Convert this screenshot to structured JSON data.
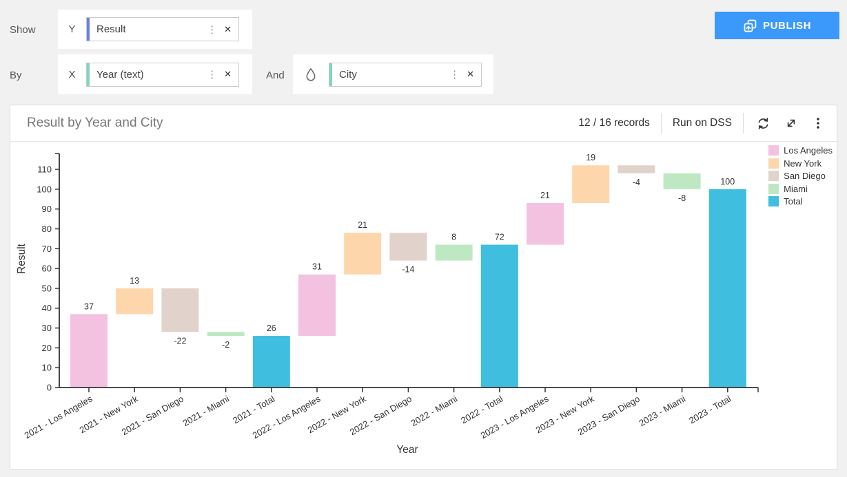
{
  "toolbar": {
    "show_label": "Show",
    "by_label": "By",
    "and_label": "And",
    "y_badge": "Y",
    "x_badge": "X",
    "y_field": {
      "value": "Result",
      "accent_color": "#687FE3"
    },
    "x_field": {
      "value": "Year (text)",
      "accent_color": "#7FD6C3"
    },
    "and_field": {
      "value": "City",
      "accent_color": "#7FD6C3"
    },
    "publish_label": "PUBLISH",
    "publish_color": "#3B99FC"
  },
  "chart_card": {
    "title": "Result by Year and City",
    "records_text": "12 / 16 records",
    "run_button": "Run on DSS"
  },
  "chart_data": {
    "type": "bar",
    "subtype": "waterfall",
    "title": "Result by Year and City",
    "xlabel": "Year",
    "ylabel": "Result",
    "ylim": [
      0,
      110
    ],
    "ytick_step": 10,
    "grid": false,
    "legend_position": "top-right",
    "categories": [
      "2021 - Los Angeles",
      "2021 - New York",
      "2021 - San Diego",
      "2021 - Miami",
      "2021 - Total",
      "2022 - Los Angeles",
      "2022 - New York",
      "2022 - San Diego",
      "2022 - Miami",
      "2022 - Total",
      "2023 - Los Angeles",
      "2023 - New York",
      "2023 - San Diego",
      "2023 - Miami",
      "2023 - Total"
    ],
    "values": [
      37,
      13,
      -22,
      -2,
      26,
      31,
      21,
      -14,
      8,
      72,
      21,
      19,
      -4,
      -8,
      100
    ],
    "is_total": [
      false,
      false,
      false,
      false,
      true,
      false,
      false,
      false,
      false,
      true,
      false,
      false,
      false,
      false,
      true
    ],
    "bar_series": [
      "Los Angeles",
      "New York",
      "San Diego",
      "Miami",
      "Total",
      "Los Angeles",
      "New York",
      "San Diego",
      "Miami",
      "Total",
      "Los Angeles",
      "New York",
      "San Diego",
      "Miami",
      "Total"
    ],
    "legend": [
      {
        "label": "Los Angeles",
        "color": "#F4C2E1"
      },
      {
        "label": "New York",
        "color": "#FDD6AC"
      },
      {
        "label": "San Diego",
        "color": "#E1D3CB"
      },
      {
        "label": "Miami",
        "color": "#BEE8C2"
      },
      {
        "label": "Total",
        "color": "#3FBEE0"
      }
    ],
    "axis_color": "#333333",
    "label_color": "#333333"
  }
}
